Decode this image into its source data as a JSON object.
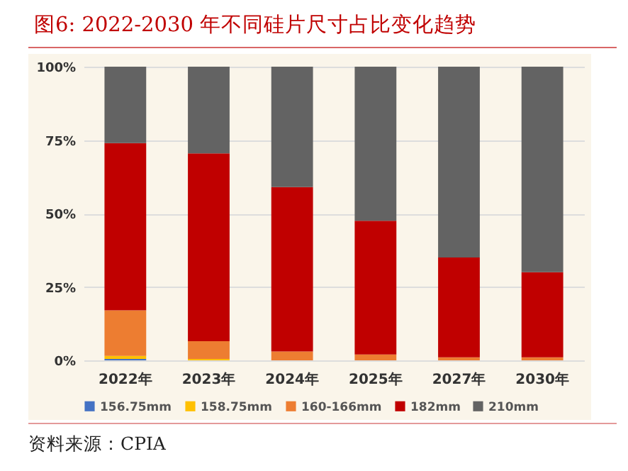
{
  "chart_data": {
    "type": "bar",
    "title": "图6:   2022-2030 年不同硅片尺寸占比变化趋势",
    "stacked": true,
    "categories": [
      "2022年",
      "2023年",
      "2024年",
      "2025年",
      "2027年",
      "2030年"
    ],
    "series": [
      {
        "name": "156.75mm",
        "color": "#4472c4",
        "values": [
          0.5,
          0,
          0,
          0,
          0,
          0
        ]
      },
      {
        "name": "158.75mm",
        "color": "#ffc000",
        "values": [
          1,
          0.5,
          0,
          0,
          0,
          0
        ]
      },
      {
        "name": "160-166mm",
        "color": "#ed7d31",
        "values": [
          15.5,
          6,
          3,
          2,
          1,
          1
        ]
      },
      {
        "name": "182mm",
        "color": "#c00000",
        "values": [
          57,
          64,
          56,
          45.5,
          34,
          29
        ]
      },
      {
        "name": "210mm",
        "color": "#636363",
        "values": [
          26,
          29.5,
          41,
          52.5,
          65,
          70
        ]
      }
    ],
    "ylim": [
      0,
      100
    ],
    "yticks": [
      {
        "value": 0,
        "label": "0%"
      },
      {
        "value": 25,
        "label": "25%"
      },
      {
        "value": 50,
        "label": "50%"
      },
      {
        "value": 75,
        "label": "75%"
      },
      {
        "value": 100,
        "label": "100%"
      }
    ],
    "grid": "y",
    "legend": "bottom",
    "annotations": [
      "资料来源：CPIA"
    ]
  }
}
